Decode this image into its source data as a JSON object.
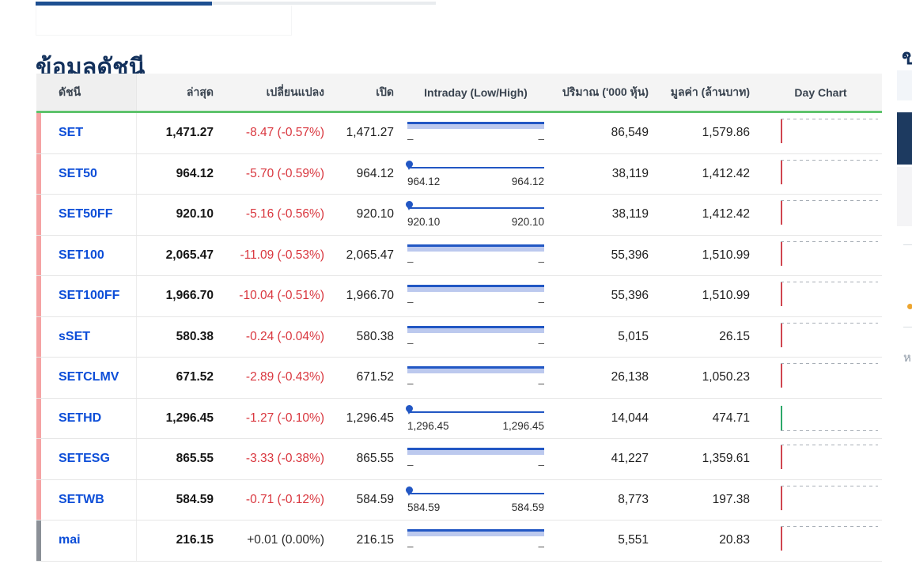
{
  "page": {
    "title": "ข้อมูลดัชนี"
  },
  "table": {
    "columns": [
      "ดัชนี",
      "ล่าสุด",
      "เปลี่ยนแปลง",
      "เปิด",
      "Intraday (Low/High)",
      "ปริมาณ ('000 หุ้น)",
      "มูลค่า (ล้านบาท)",
      "Day Chart"
    ],
    "rows": [
      {
        "index": "SET",
        "last": "1,471.27",
        "change": "-8.47 (-0.57%)",
        "change_dir": "down",
        "open": "1,471.27",
        "intraday": {
          "type": "range",
          "low": "–",
          "high": "–"
        },
        "volume": "86,549",
        "value": "1,579.86",
        "day_chart": "down",
        "accent": "pink"
      },
      {
        "index": "SET50",
        "last": "964.12",
        "change": "-5.70 (-0.59%)",
        "change_dir": "down",
        "open": "964.12",
        "intraday": {
          "type": "slider",
          "low": "964.12",
          "high": "964.12"
        },
        "volume": "38,119",
        "value": "1,412.42",
        "day_chart": "down",
        "accent": "pink"
      },
      {
        "index": "SET50FF",
        "last": "920.10",
        "change": "-5.16 (-0.56%)",
        "change_dir": "down",
        "open": "920.10",
        "intraday": {
          "type": "slider",
          "low": "920.10",
          "high": "920.10"
        },
        "volume": "38,119",
        "value": "1,412.42",
        "day_chart": "down",
        "accent": "pink"
      },
      {
        "index": "SET100",
        "last": "2,065.47",
        "change": "-11.09 (-0.53%)",
        "change_dir": "down",
        "open": "2,065.47",
        "intraday": {
          "type": "range",
          "low": "–",
          "high": "–"
        },
        "volume": "55,396",
        "value": "1,510.99",
        "day_chart": "down",
        "accent": "pink"
      },
      {
        "index": "SET100FF",
        "last": "1,966.70",
        "change": "-10.04 (-0.51%)",
        "change_dir": "down",
        "open": "1,966.70",
        "intraday": {
          "type": "range",
          "low": "–",
          "high": "–"
        },
        "volume": "55,396",
        "value": "1,510.99",
        "day_chart": "down",
        "accent": "pink"
      },
      {
        "index": "sSET",
        "last": "580.38",
        "change": "-0.24 (-0.04%)",
        "change_dir": "down",
        "open": "580.38",
        "intraday": {
          "type": "range",
          "low": "–",
          "high": "–"
        },
        "volume": "5,015",
        "value": "26.15",
        "day_chart": "down",
        "accent": "pink"
      },
      {
        "index": "SETCLMV",
        "last": "671.52",
        "change": "-2.89 (-0.43%)",
        "change_dir": "down",
        "open": "671.52",
        "intraday": {
          "type": "range",
          "low": "–",
          "high": "–"
        },
        "volume": "26,138",
        "value": "1,050.23",
        "day_chart": "down",
        "accent": "pink"
      },
      {
        "index": "SETHD",
        "last": "1,296.45",
        "change": "-1.27 (-0.10%)",
        "change_dir": "down",
        "open": "1,296.45",
        "intraday": {
          "type": "slider",
          "low": "1,296.45",
          "high": "1,296.45"
        },
        "volume": "14,044",
        "value": "474.71",
        "day_chart": "up",
        "accent": "pink"
      },
      {
        "index": "SETESG",
        "last": "865.55",
        "change": "-3.33 (-0.38%)",
        "change_dir": "down",
        "open": "865.55",
        "intraday": {
          "type": "range",
          "low": "–",
          "high": "–"
        },
        "volume": "41,227",
        "value": "1,359.61",
        "day_chart": "down",
        "accent": "pink"
      },
      {
        "index": "SETWB",
        "last": "584.59",
        "change": "-0.71 (-0.12%)",
        "change_dir": "down",
        "open": "584.59",
        "intraday": {
          "type": "slider",
          "low": "584.59",
          "high": "584.59"
        },
        "volume": "8,773",
        "value": "197.38",
        "day_chart": "down",
        "accent": "pink"
      },
      {
        "index": "mai",
        "last": "216.15",
        "change": "+0.01 (0.00%)",
        "change_dir": "flat",
        "open": "216.15",
        "intraday": {
          "type": "range",
          "low": "–",
          "high": "–"
        },
        "volume": "5,551",
        "value": "20.83",
        "day_chart": "down",
        "accent": "gray"
      }
    ]
  },
  "right_edge": {
    "heading_fragment": "ข",
    "text_fragment": "ห"
  },
  "colors": {
    "brand_navy": "#13315c",
    "tab_active_blue": "#1d4f91",
    "link_blue": "#0d4ed8",
    "negative_red": "#d9363e",
    "header_green_border": "#5fc36d",
    "accent_pink": "#f5a3a4",
    "accent_gray": "#8b9097",
    "intraday_dark_blue": "#2257c4",
    "intraday_light_blue": "#bcc9ee",
    "spark_red": "#d0454f",
    "spark_green": "#2ca86a"
  }
}
